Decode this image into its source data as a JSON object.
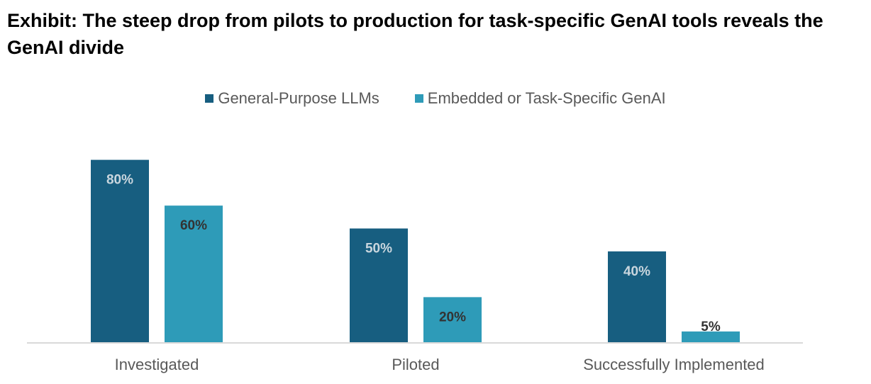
{
  "colors": {
    "general": "#175e80",
    "embedded": "#2e9bb8",
    "axis": "#d9d9d9",
    "label_on_general": "#c9d6de",
    "label_on_embedded": "#333333"
  },
  "chart_data": {
    "type": "bar",
    "title": "Exhibit: The steep drop from pilots to production for task-specific GenAI tools reveals the GenAI divide",
    "categories": [
      "Investigated",
      "Piloted",
      "Successfully Implemented"
    ],
    "series": [
      {
        "name": "General-Purpose LLMs",
        "values": [
          80,
          50,
          40
        ],
        "labels": [
          "80%",
          "50%",
          "40%"
        ]
      },
      {
        "name": "Embedded or Task-Specific GenAI",
        "values": [
          60,
          20,
          5
        ],
        "labels": [
          "60%",
          "20%",
          "5%"
        ]
      }
    ],
    "ylim": [
      0,
      100
    ],
    "legend": "top-center",
    "grid": false
  }
}
